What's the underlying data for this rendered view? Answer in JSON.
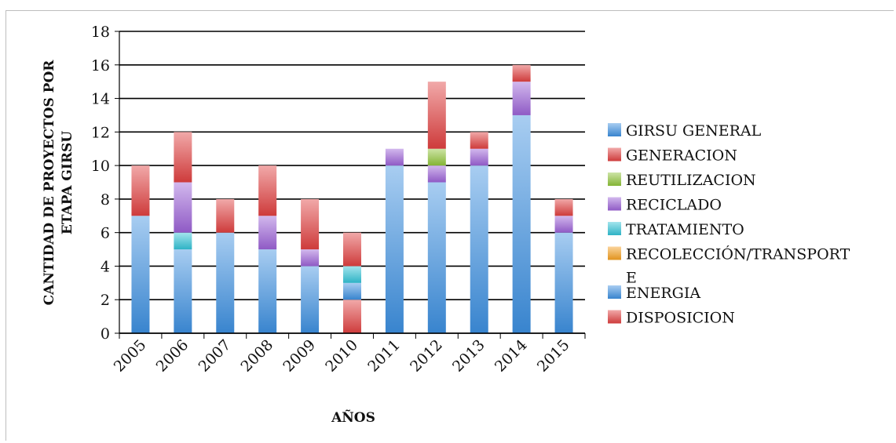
{
  "chart_data": {
    "type": "bar",
    "stacked": true,
    "categories": [
      "2005",
      "2006",
      "2007",
      "2008",
      "2009",
      "2010",
      "2011",
      "2012",
      "2013",
      "2014",
      "2015"
    ],
    "ylabel_lines": [
      "CANTIDAD DE PROYECTOS POR",
      "ETAPA GIRSU"
    ],
    "xlabel": "AÑOS",
    "ylim": [
      0,
      18
    ],
    "yticks": [
      0,
      2,
      4,
      6,
      8,
      10,
      12,
      14,
      16,
      18
    ],
    "grid": true,
    "legend_position": "right",
    "series": [
      {
        "name": "DISPOSICION",
        "color": "#e04040",
        "values": [
          0,
          0,
          0,
          0,
          0,
          2,
          0,
          0,
          0,
          0,
          0
        ]
      },
      {
        "name": "ENERGIA",
        "color": "#3d8fe0",
        "values": [
          7,
          5,
          6,
          5,
          4,
          1,
          10,
          9,
          10,
          13,
          6
        ]
      },
      {
        "name": "RECOLECCIÓN/TRANSPORTE",
        "legend_lines": [
          "RECOLECCIÓN/TRANSPORT",
          "E"
        ],
        "color": "#f5a020",
        "values": [
          0,
          0,
          0,
          0,
          0,
          0,
          0,
          0,
          0,
          0,
          0
        ]
      },
      {
        "name": "TRATAMIENTO",
        "color": "#33c3d6",
        "values": [
          0,
          1,
          0,
          0,
          0,
          1,
          0,
          0,
          0,
          0,
          0
        ]
      },
      {
        "name": "RECICLADO",
        "color": "#9b62d6",
        "values": [
          0,
          3,
          0,
          2,
          1,
          0,
          1,
          1,
          1,
          2,
          1
        ]
      },
      {
        "name": "REUTILIZACION",
        "color": "#8fc43a",
        "values": [
          0,
          0,
          0,
          0,
          0,
          0,
          0,
          1,
          0,
          0,
          0
        ]
      },
      {
        "name": "GENERACION",
        "color": "#e04040",
        "values": [
          3,
          3,
          2,
          3,
          3,
          2,
          0,
          4,
          1,
          1,
          1
        ]
      },
      {
        "name": "GIRSU GENERAL",
        "color": "#3d8fe0",
        "values": [
          0,
          0,
          0,
          0,
          0,
          0,
          0,
          0,
          0,
          0,
          0
        ]
      }
    ],
    "legend_order": [
      "GIRSU GENERAL",
      "GENERACION",
      "REUTILIZACION",
      "RECICLADO",
      "TRATAMIENTO",
      "RECOLECCIÓN/TRANSPORTE",
      "ENERGIA",
      "DISPOSICION"
    ]
  }
}
